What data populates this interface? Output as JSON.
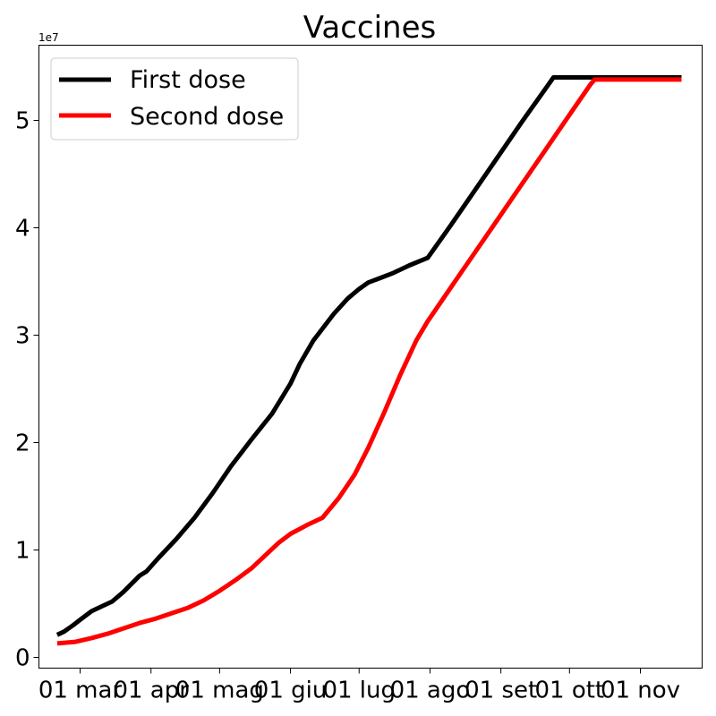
{
  "chart_data": {
    "type": "line",
    "title": "Vaccines",
    "xlabel": "",
    "ylabel": "",
    "y_offset_label": "1e7",
    "xlim": [
      "2021-02-11",
      "2021-11-28"
    ],
    "ylim": [
      -1000000,
      57000000
    ],
    "x_ticks": [
      {
        "date": "2021-03-01",
        "label": "01 mar"
      },
      {
        "date": "2021-04-01",
        "label": "01 apr"
      },
      {
        "date": "2021-05-01",
        "label": "01 mag"
      },
      {
        "date": "2021-06-01",
        "label": "01 giu"
      },
      {
        "date": "2021-07-01",
        "label": "01 lug"
      },
      {
        "date": "2021-08-01",
        "label": "01 ago"
      },
      {
        "date": "2021-09-01",
        "label": "01 set"
      },
      {
        "date": "2021-10-01",
        "label": "01 ott"
      },
      {
        "date": "2021-11-01",
        "label": "01 nov"
      }
    ],
    "y_ticks": [
      {
        "value": 0,
        "label": "0"
      },
      {
        "value": 10000000,
        "label": "1"
      },
      {
        "value": 20000000,
        "label": "2"
      },
      {
        "value": 30000000,
        "label": "3"
      },
      {
        "value": 40000000,
        "label": "4"
      },
      {
        "value": 50000000,
        "label": "5"
      }
    ],
    "legend": {
      "placement": "upper-left"
    },
    "series": [
      {
        "name": "First dose",
        "color": "#000000",
        "points": [
          [
            "2021-02-19",
            2100000
          ],
          [
            "2021-02-22",
            2400000
          ],
          [
            "2021-02-26",
            3000000
          ],
          [
            "2021-03-01",
            3500000
          ],
          [
            "2021-03-06",
            4300000
          ],
          [
            "2021-03-11",
            4800000
          ],
          [
            "2021-03-15",
            5200000
          ],
          [
            "2021-03-20",
            6100000
          ],
          [
            "2021-03-27",
            7600000
          ],
          [
            "2021-03-30",
            8000000
          ],
          [
            "2021-04-04",
            9200000
          ],
          [
            "2021-04-12",
            11000000
          ],
          [
            "2021-04-20",
            13000000
          ],
          [
            "2021-04-28",
            15300000
          ],
          [
            "2021-05-06",
            17800000
          ],
          [
            "2021-05-15",
            20300000
          ],
          [
            "2021-05-24",
            22700000
          ],
          [
            "2021-06-01",
            25500000
          ],
          [
            "2021-06-05",
            27300000
          ],
          [
            "2021-06-11",
            29500000
          ],
          [
            "2021-06-20",
            32000000
          ],
          [
            "2021-06-26",
            33400000
          ],
          [
            "2021-07-01",
            34300000
          ],
          [
            "2021-07-05",
            34900000
          ],
          [
            "2021-07-10",
            35300000
          ],
          [
            "2021-07-16",
            35800000
          ],
          [
            "2021-07-23",
            36500000
          ],
          [
            "2021-07-31",
            37200000
          ],
          [
            "2021-08-10",
            40200000
          ],
          [
            "2021-08-20",
            43300000
          ],
          [
            "2021-08-31",
            46700000
          ],
          [
            "2021-09-10",
            49800000
          ],
          [
            "2021-09-20",
            52800000
          ],
          [
            "2021-09-24",
            54000000
          ],
          [
            "2021-10-05",
            54000000
          ],
          [
            "2021-10-20",
            54000000
          ],
          [
            "2021-11-19",
            54000000
          ]
        ]
      },
      {
        "name": "Second dose",
        "color": "#ff0000",
        "points": [
          [
            "2021-02-19",
            1300000
          ],
          [
            "2021-02-27",
            1450000
          ],
          [
            "2021-03-06",
            1800000
          ],
          [
            "2021-03-13",
            2200000
          ],
          [
            "2021-03-20",
            2700000
          ],
          [
            "2021-03-27",
            3200000
          ],
          [
            "2021-04-03",
            3600000
          ],
          [
            "2021-04-10",
            4100000
          ],
          [
            "2021-04-17",
            4600000
          ],
          [
            "2021-04-24",
            5300000
          ],
          [
            "2021-05-01",
            6200000
          ],
          [
            "2021-05-08",
            7200000
          ],
          [
            "2021-05-15",
            8300000
          ],
          [
            "2021-05-22",
            9700000
          ],
          [
            "2021-05-27",
            10700000
          ],
          [
            "2021-06-01",
            11500000
          ],
          [
            "2021-06-08",
            12300000
          ],
          [
            "2021-06-15",
            13000000
          ],
          [
            "2021-06-22",
            14800000
          ],
          [
            "2021-06-29",
            17000000
          ],
          [
            "2021-07-05",
            19500000
          ],
          [
            "2021-07-12",
            22800000
          ],
          [
            "2021-07-19",
            26300000
          ],
          [
            "2021-07-26",
            29500000
          ],
          [
            "2021-07-31",
            31300000
          ],
          [
            "2021-08-10",
            34400000
          ],
          [
            "2021-08-20",
            37500000
          ],
          [
            "2021-08-31",
            40900000
          ],
          [
            "2021-09-10",
            44000000
          ],
          [
            "2021-09-20",
            47100000
          ],
          [
            "2021-09-30",
            50200000
          ],
          [
            "2021-10-10",
            53300000
          ],
          [
            "2021-10-12",
            53800000
          ],
          [
            "2021-10-20",
            53800000
          ],
          [
            "2021-11-19",
            53800000
          ]
        ]
      }
    ]
  }
}
